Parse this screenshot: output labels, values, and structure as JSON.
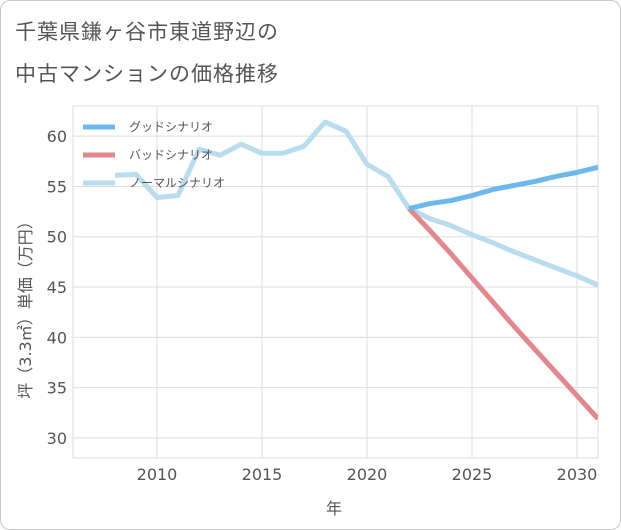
{
  "title_line1": "千葉県鎌ヶ谷市東道野辺の",
  "title_line2": "中古マンションの価格推移",
  "chart_data": {
    "type": "line",
    "xlabel": "年",
    "ylabel": "坪（3.3㎡）単価（万円）",
    "xlim": [
      2006,
      2031
    ],
    "ylim": [
      28,
      63
    ],
    "xticks": [
      2010,
      2015,
      2020,
      2025,
      2030
    ],
    "yticks": [
      30,
      35,
      40,
      45,
      50,
      55,
      60
    ],
    "grid": true,
    "legend_position": "top-left",
    "series": [
      {
        "name": "グッドシナリオ",
        "color": "#6cb8ec",
        "x": [
          2022,
          2023,
          2024,
          2025,
          2026,
          2027,
          2028,
          2029,
          2030,
          2031
        ],
        "values": [
          52.8,
          53.3,
          53.6,
          54.1,
          54.7,
          55.1,
          55.5,
          56.0,
          56.4,
          56.9
        ]
      },
      {
        "name": "バッドシナリオ",
        "color": "#e0888e",
        "x": [
          2022,
          2023,
          2024,
          2025,
          2026,
          2027,
          2028,
          2029,
          2030,
          2031
        ],
        "values": [
          52.8,
          50.6,
          48.3,
          45.9,
          43.5,
          41.1,
          38.8,
          36.5,
          34.2,
          31.9
        ]
      },
      {
        "name": "ノーマルシナリオ",
        "color": "#b9dcee",
        "x": [
          2008,
          2009,
          2010,
          2011,
          2012,
          2013,
          2014,
          2015,
          2016,
          2017,
          2018,
          2019,
          2020,
          2021,
          2022,
          2023,
          2024,
          2025,
          2026,
          2027,
          2028,
          2029,
          2030,
          2031
        ],
        "values": [
          56.1,
          56.2,
          53.9,
          54.1,
          58.7,
          58.1,
          59.2,
          58.3,
          58.3,
          59.0,
          61.4,
          60.5,
          57.2,
          56.0,
          52.8,
          51.8,
          51.1,
          50.2,
          49.4,
          48.5,
          47.7,
          46.9,
          46.1,
          45.2
        ]
      }
    ]
  }
}
